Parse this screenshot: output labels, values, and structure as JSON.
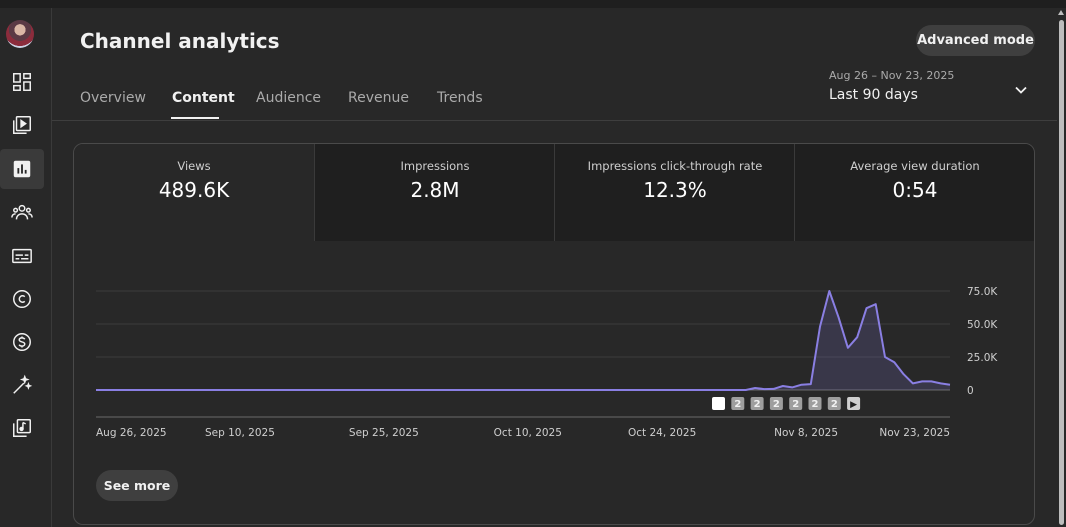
{
  "page": {
    "title": "Channel analytics",
    "advanced_label": "Advanced mode"
  },
  "sidebar": {
    "items": [
      {
        "icon": "dashboard-icon"
      },
      {
        "icon": "content-icon"
      },
      {
        "icon": "analytics-icon",
        "active": true
      },
      {
        "icon": "community-icon"
      },
      {
        "icon": "subtitles-icon"
      },
      {
        "icon": "copyright-icon"
      },
      {
        "icon": "earn-icon"
      },
      {
        "icon": "customization-icon"
      },
      {
        "icon": "audio-library-icon"
      }
    ]
  },
  "tabs": [
    "Overview",
    "Content",
    "Audience",
    "Revenue",
    "Trends"
  ],
  "active_tab": "Content",
  "date_range": {
    "range": "Aug 26 – Nov 23, 2025",
    "label": "Last 90 days"
  },
  "metrics": [
    {
      "label": "Views",
      "value": "489.6K"
    },
    {
      "label": "Impressions",
      "value": "2.8M"
    },
    {
      "label": "Impressions click-through rate",
      "value": "12.3%"
    },
    {
      "label": "Average view duration",
      "value": "0:54"
    }
  ],
  "see_more_label": "See more",
  "colors": {
    "accent": "#8a7fe3",
    "background": "#282828"
  },
  "chart_data": {
    "type": "area",
    "series": [
      {
        "values": [
          0,
          0,
          0,
          0,
          0,
          0,
          0,
          0,
          0,
          0,
          0,
          0,
          0,
          0,
          0,
          0,
          0,
          0,
          0,
          0,
          0,
          0,
          0,
          0,
          0,
          0,
          0,
          0,
          0,
          0,
          0,
          0,
          0,
          0,
          0,
          0,
          0,
          0,
          0,
          0,
          0,
          0,
          0,
          0,
          0,
          0,
          0,
          0,
          0,
          0,
          0,
          0,
          0,
          0,
          0,
          0,
          0,
          0,
          0,
          0,
          0,
          0,
          0,
          0,
          0,
          0,
          0,
          0,
          0,
          0,
          0,
          1500,
          700,
          800,
          3000,
          2000,
          4000,
          4500,
          48000,
          75000,
          55000,
          32000,
          40000,
          62000,
          65000,
          25000,
          21000,
          12000,
          5000,
          6500,
          6500,
          5000,
          4000
        ]
      }
    ],
    "x_start": "Aug 26, 2025",
    "x_end": "Nov 23, 2025",
    "x_tick_labels": [
      "Aug 26, 2025",
      "Sep 10, 2025",
      "Sep 25, 2025",
      "Oct 10, 2025",
      "Oct 24, 2025",
      "Nov 8, 2025",
      "Nov 23, 2025"
    ],
    "y_tick_labels": [
      "75.0K",
      "50.0K",
      "25.0K",
      "0"
    ],
    "y_ticks": [
      75000,
      50000,
      25000,
      0
    ],
    "ylim": [
      0,
      100000
    ],
    "grid": true,
    "markers": [
      "",
      "2",
      "2",
      "2",
      "2",
      "2",
      "2",
      "▶"
    ]
  }
}
